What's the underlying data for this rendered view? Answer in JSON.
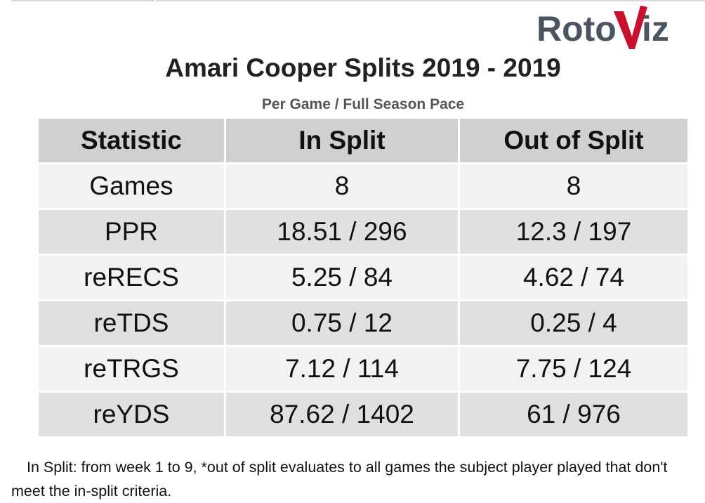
{
  "logo": {
    "text_left": "Roto",
    "text_right": "iz",
    "letter_v": "V",
    "colors": {
      "text": "#4a5561",
      "accent": "#c8102e"
    }
  },
  "title": "Amari Cooper Splits 2019 - 2019",
  "subtitle": "Per Game / Full Season Pace",
  "table": {
    "headers": [
      "Statistic",
      "In Split",
      "Out of Split"
    ],
    "rows": [
      [
        "Games",
        "8",
        "8"
      ],
      [
        "PPR",
        "18.51 / 296",
        "12.3 / 197"
      ],
      [
        "reRECS",
        "5.25 / 84",
        "4.62 / 74"
      ],
      [
        "reTDS",
        "0.75 / 12",
        "0.25 / 4"
      ],
      [
        "reTRGS",
        "7.12 / 114",
        "7.75 / 124"
      ],
      [
        "reYDS",
        "87.62 / 1402",
        "61 / 976"
      ]
    ]
  },
  "footnote": "In Split: from week 1 to 9,  *out of split evaluates to all games the subject player played that don't meet the in-split criteria."
}
